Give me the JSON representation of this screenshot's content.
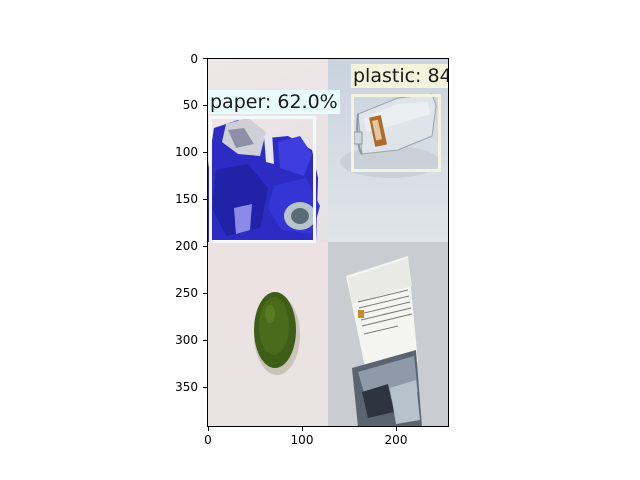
{
  "axes": {
    "x_ticks": [
      "0",
      "100",
      "200"
    ],
    "y_ticks": [
      "0",
      "50",
      "100",
      "150",
      "200",
      "250",
      "300",
      "350"
    ]
  },
  "detections": [
    {
      "label": "paper: 62.0%",
      "box_color": "#f4fafb",
      "label_bg": "#e8fbfd"
    },
    {
      "label": "plastic: 84",
      "box_color": "#f4f3dc",
      "label_bg": "#f4f3dc"
    }
  ],
  "colors": {
    "can_blue": "#2f2fd0",
    "bottle_cap_green": "#3e5d16"
  },
  "tiles": [
    "crushed-can-photo",
    "plastic-bottle-photo",
    "green-bottle-cap-photo",
    "paper-magazine-photo"
  ]
}
